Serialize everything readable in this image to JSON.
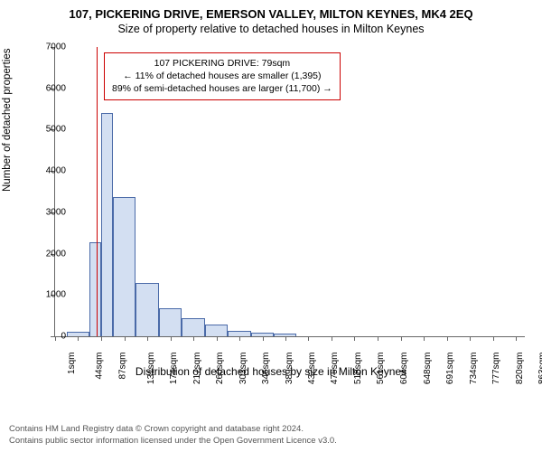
{
  "title": "107, PICKERING DRIVE, EMERSON VALLEY, MILTON KEYNES, MK4 2EQ",
  "subtitle": "Size of property relative to detached houses in Milton Keynes",
  "chart": {
    "type": "histogram",
    "ylabel": "Number of detached properties",
    "xlabel": "Distribution of detached houses by size in Milton Keynes",
    "ylim": [
      0,
      7000
    ],
    "ytick_step": 1000,
    "xlim": [
      1,
      880
    ],
    "xticks": [
      1,
      44,
      87,
      131,
      174,
      217,
      260,
      303,
      346,
      389,
      432,
      475,
      518,
      561,
      604,
      648,
      691,
      734,
      777,
      820,
      863
    ],
    "xtick_suffix": "sqm",
    "bars": [
      {
        "x0": 23,
        "x1": 66,
        "y": 120
      },
      {
        "x0": 66,
        "x1": 87,
        "y": 2280
      },
      {
        "x0": 87,
        "x1": 109,
        "y": 5400
      },
      {
        "x0": 109,
        "x1": 152,
        "y": 3380
      },
      {
        "x0": 152,
        "x1": 195,
        "y": 1300
      },
      {
        "x0": 195,
        "x1": 238,
        "y": 680
      },
      {
        "x0": 238,
        "x1": 281,
        "y": 430
      },
      {
        "x0": 281,
        "x1": 324,
        "y": 280
      },
      {
        "x0": 324,
        "x1": 367,
        "y": 130
      },
      {
        "x0": 367,
        "x1": 410,
        "y": 80
      },
      {
        "x0": 410,
        "x1": 453,
        "y": 60
      }
    ],
    "bar_fill": "#d3dff2",
    "bar_stroke": "#4a6aa8",
    "marker_x": 79,
    "marker_color": "#cc0000",
    "annotation": {
      "line1": "107 PICKERING DRIVE: 79sqm",
      "line2": "← 11% of detached houses are smaller (1,395)",
      "line3": "89% of semi-detached houses are larger (11,700) →",
      "border_color": "#cc0000"
    },
    "background": "#ffffff",
    "axis_color": "#666666",
    "tick_fontsize": 10,
    "label_fontsize": 12
  },
  "footer": {
    "line1": "Contains HM Land Registry data © Crown copyright and database right 2024.",
    "line2": "Contains public sector information licensed under the Open Government Licence v3.0."
  }
}
